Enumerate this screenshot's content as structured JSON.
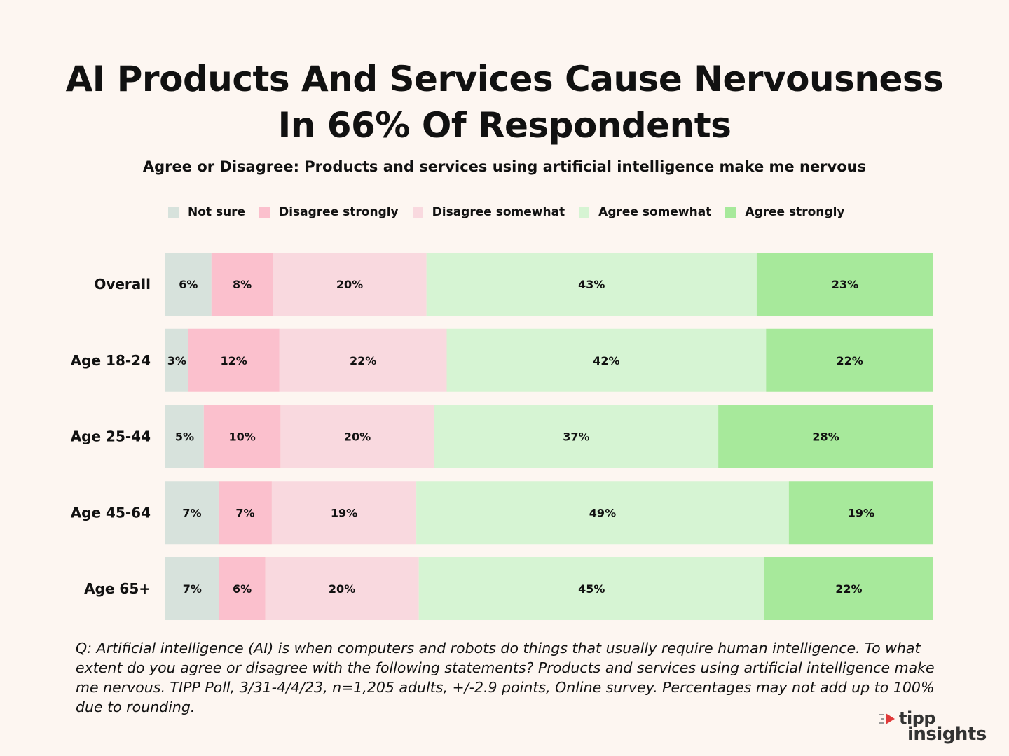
{
  "header": {
    "title": "AI Products And Services Cause Nervousness In 66% Of Respondents",
    "subtitle": "Agree or Disagree: Products and services using artificial intelligence make me nervous"
  },
  "colors": {
    "background": "#fdf6f1",
    "not_sure": "#d7e2dc",
    "disagree_strongly": "#fbc0cd",
    "disagree_somewhat": "#f9d9df",
    "agree_somewhat": "#d6f4d3",
    "agree_strongly": "#a7e99b",
    "logo_red": "#e03a3a"
  },
  "chart_data": {
    "type": "bar",
    "orientation": "horizontal",
    "stacked": true,
    "title": "AI Products And Services Cause Nervousness In 66% Of Respondents",
    "subtitle": "Agree or Disagree: Products and services using artificial intelligence make me nervous",
    "categories": [
      "Overall",
      "Age 18-24",
      "Age 25-44",
      "Age 45-64",
      "Age 65+"
    ],
    "series": [
      {
        "name": "Not sure",
        "color": "#d7e2dc",
        "values": [
          6,
          3,
          5,
          7,
          7
        ]
      },
      {
        "name": "Disagree strongly",
        "color": "#fbc0cd",
        "values": [
          8,
          12,
          10,
          7,
          6
        ]
      },
      {
        "name": "Disagree somewhat",
        "color": "#f9d9df",
        "values": [
          20,
          22,
          20,
          19,
          20
        ]
      },
      {
        "name": "Agree somewhat",
        "color": "#d6f4d3",
        "values": [
          43,
          42,
          37,
          49,
          45
        ]
      },
      {
        "name": "Agree strongly",
        "color": "#a7e99b",
        "values": [
          23,
          22,
          28,
          19,
          22
        ]
      }
    ],
    "value_suffix": "%",
    "legend_position": "top-left",
    "xlim": [
      0,
      100
    ]
  },
  "footnote": "Q: Artificial intelligence (AI) is when computers and robots do things that usually require human intelligence. To what extent do you agree or disagree with the following statements? Products and services using artificial intelligence make me nervous. TIPP Poll, 3/31-4/4/23, n=1,205 adults, +/-2.9 points, Online survey. Percentages may not add up to 100% due to rounding.",
  "logo": {
    "top": "tipp",
    "bottom": "insights"
  }
}
